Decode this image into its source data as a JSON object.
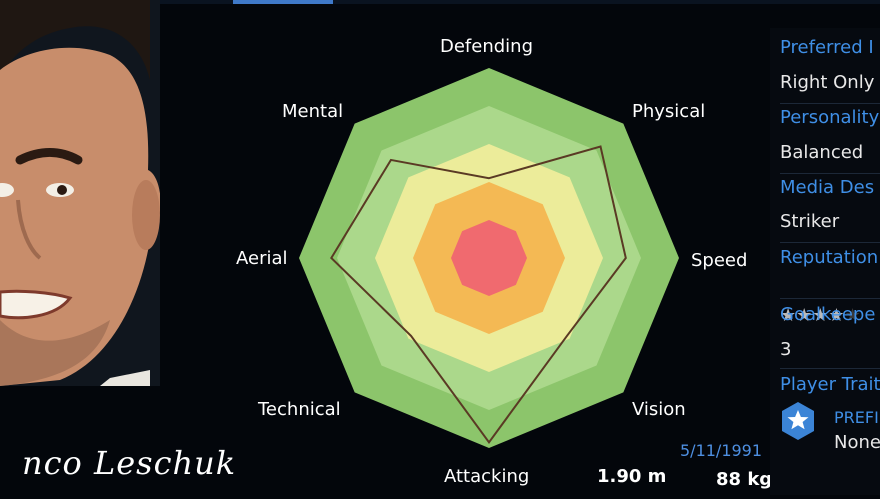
{
  "player": {
    "signature": "nco Leschuk",
    "date_of_birth": "5/11/1991",
    "height": "1.90 m",
    "weight": "88 kg"
  },
  "radar": {
    "labels": {
      "defending": "Defending",
      "physical": "Physical",
      "speed": "Speed",
      "vision": "Vision",
      "attacking": "Attacking",
      "technical": "Technical",
      "aerial": "Aerial",
      "mental": "Mental"
    },
    "profile": {
      "Defending": 0.42,
      "Physical": 0.83,
      "Speed": 0.72,
      "Vision": 0.58,
      "Attacking": 0.97,
      "Technical": 0.58,
      "Aerial": 0.83,
      "Mental": 0.73
    },
    "ring_colors": [
      "#8cc56b",
      "#abd88b",
      "#ecec9a",
      "#f4b954",
      "#f06a6f"
    ]
  },
  "info": {
    "preferred_foot_label": "Preferred I",
    "preferred_foot_value": "Right Only",
    "personality_label": "Personality",
    "personality_value": "Balanced",
    "media_label": "Media Des",
    "media_value": "Striker",
    "reputation_label": "Reputation",
    "reputation_stars": 4,
    "goalkeeper_label": "Goalkeepe",
    "goalkeeper_value": "3",
    "traits_label": "Player Trait",
    "trait_name": "PREFI",
    "trait_value": "None"
  },
  "colors": {
    "accent": "#3f8fe6",
    "profile_line": "#5a3a24"
  }
}
